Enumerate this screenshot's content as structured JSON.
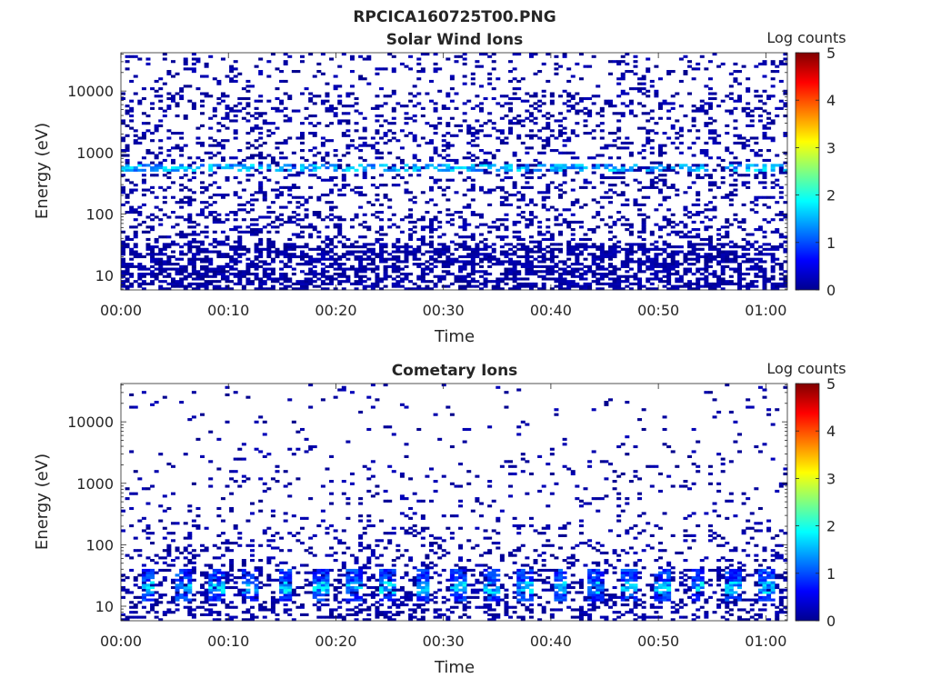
{
  "figure": {
    "title": "RPCICA160725T00.PNG"
  },
  "chart_data": [
    {
      "type": "heatmap",
      "title": "Solar Wind Ions",
      "xlabel": "Time",
      "ylabel": "Energy (eV)",
      "yscale": "log",
      "ylim": [
        5.8,
        42000
      ],
      "xlim_minutes": [
        0,
        62
      ],
      "x_ticks": [
        "00:00",
        "00:10",
        "00:20",
        "00:30",
        "00:40",
        "00:50",
        "01:00"
      ],
      "y_ticks": [
        "10",
        "100",
        "1000",
        "10000"
      ],
      "colorbar": {
        "label": "Log counts",
        "range": [
          0,
          5
        ],
        "ticks": [
          "0",
          "1",
          "2",
          "3",
          "4",
          "5"
        ]
      },
      "colormap": "jet",
      "grid": false,
      "data_summary": {
        "background_log_counts": 0,
        "enhanced_band_energy_eV": 580,
        "enhanced_band_log_counts": 1.7,
        "dense_low_energy_below_eV": 35
      }
    },
    {
      "type": "heatmap",
      "title": "Cometary Ions",
      "xlabel": "Time",
      "ylabel": "Energy (eV)",
      "yscale": "log",
      "ylim": [
        5.8,
        42000
      ],
      "xlim_minutes": [
        0,
        62
      ],
      "x_ticks": [
        "00:00",
        "00:10",
        "00:20",
        "00:30",
        "00:40",
        "00:50",
        "01:00"
      ],
      "y_ticks": [
        "10",
        "100",
        "1000",
        "10000"
      ],
      "colorbar": {
        "label": "Log counts",
        "range": [
          0,
          5
        ],
        "ticks": [
          "0",
          "1",
          "2",
          "3",
          "4",
          "5"
        ]
      },
      "colormap": "jet",
      "grid": false,
      "data_summary": {
        "background_log_counts": 0,
        "enhanced_band_energy_eV": 20,
        "enhanced_band_log_counts": 1.8,
        "band_period_minutes": 3.2
      }
    }
  ]
}
